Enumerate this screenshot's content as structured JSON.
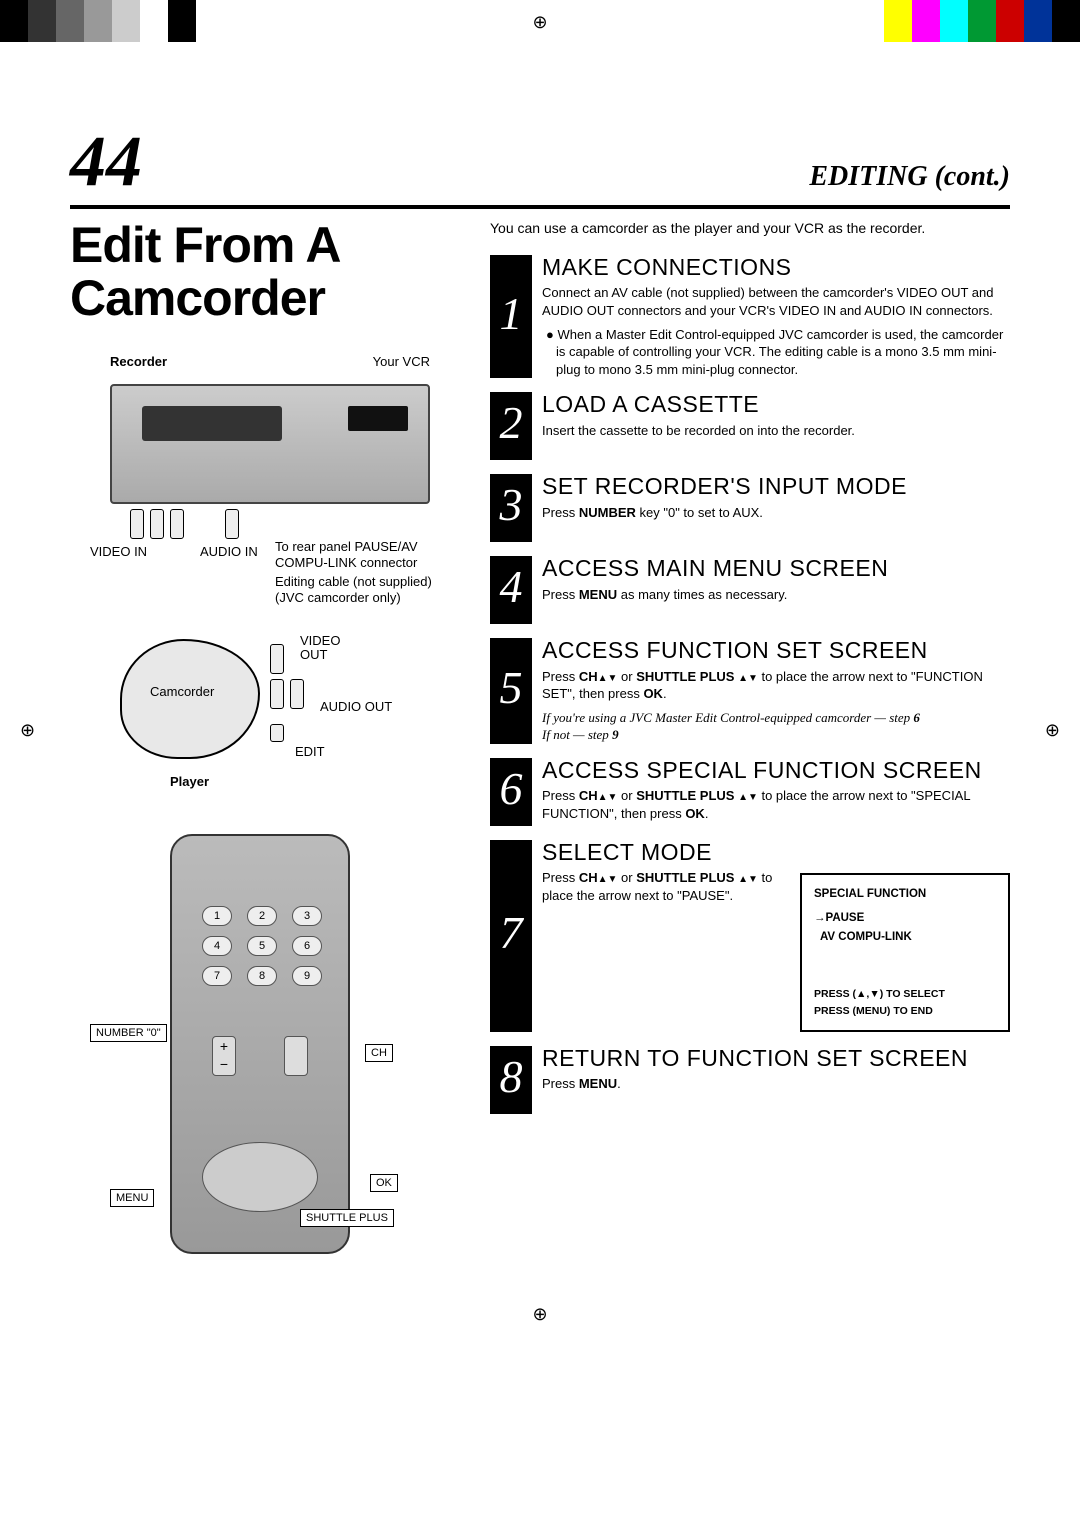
{
  "cropColors": {
    "leftBars": [
      "#000000",
      "#333333",
      "#666666",
      "#999999",
      "#cccccc",
      "#ffffff",
      "#000000"
    ],
    "rightBars": [
      "#ffff00",
      "#ff00ff",
      "#00ffff",
      "#009933",
      "#cc0000",
      "#003399",
      "#000000"
    ]
  },
  "header": {
    "pageNumber": "44",
    "sectionTitle": "EDITING (cont.)"
  },
  "mainTitle": "Edit From A Camcorder",
  "diagram": {
    "recorderLabel": "Recorder",
    "yourVcrLabel": "Your VCR",
    "videoInLabel": "VIDEO IN",
    "audioInLabel": "AUDIO IN",
    "rearPanelLabel": "To rear panel PAUSE/AV COMPU-LINK connector",
    "editingCableLabel": "Editing cable (not supplied) (JVC camcorder only)",
    "videoOutLabel": "VIDEO OUT",
    "camcorderLabel": "Camcorder",
    "audioOutLabel": "AUDIO OUT",
    "editLabel": "EDIT",
    "playerLabel": "Player",
    "numberZero": "NUMBER \"0\"",
    "chLabel": "CH",
    "menuLabel": "MENU",
    "okLabel": "OK",
    "shuttlePlusLabel": "SHUTTLE PLUS",
    "remoteNums": [
      "1",
      "2",
      "3",
      "4",
      "5",
      "6",
      "7",
      "8",
      "9"
    ]
  },
  "intro": "You can use a camcorder as the player and your VCR as the recorder.",
  "steps": [
    {
      "num": "1",
      "title": "MAKE CONNECTIONS",
      "body": "Connect an AV cable (not supplied) between the camcorder's VIDEO OUT and AUDIO OUT connectors and your VCR's VIDEO IN and AUDIO IN connectors.",
      "bullet": "When a Master Edit Control-equipped JVC camcorder is used, the camcorder is capable of controlling your VCR. The editing cable is a mono 3.5 mm mini-plug to mono 3.5 mm mini-plug connector."
    },
    {
      "num": "2",
      "title": "LOAD A CASSETTE",
      "body": "Insert the cassette to be recorded on into the recorder."
    },
    {
      "num": "3",
      "title": "SET RECORDER'S INPUT MODE",
      "bodyHtml": "Press <span class='b'>NUMBER</span> key \"0\" to set to AUX."
    },
    {
      "num": "4",
      "title": "ACCESS MAIN MENU SCREEN",
      "bodyHtml": "Press <span class='b'>MENU</span> as many times as necessary."
    },
    {
      "num": "5",
      "title": "ACCESS FUNCTION SET SCREEN",
      "bodyHtml": "Press <span class='b'>CH<span class='tri'>▲▼</span></span> or <span class='b'>SHUTTLE PLUS <span class='tri'>▲▼</span></span> to place the arrow next to \"FUNCTION SET\", then press <span class='b'>OK</span>.",
      "noteHtml": "If you're using a JVC Master Edit Control-equipped camcorder — step <b>6</b><br>If not — step <b>9</b>"
    },
    {
      "num": "6",
      "title": "ACCESS SPECIAL FUNCTION SCREEN",
      "bodyHtml": "Press <span class='b'>CH<span class='tri'>▲▼</span></span> or <span class='b'>SHUTTLE PLUS <span class='tri'>▲▼</span></span> to place the arrow next to \"SPECIAL FUNCTION\", then press <span class='b'>OK</span>."
    },
    {
      "num": "7",
      "title": "SELECT MODE",
      "bodyHtml": "Press <span class='b'>CH<span class='tri'>▲▼</span></span> or <span class='b'>SHUTTLE PLUS <span class='tri'>▲▼</span></span> to place the arrow next to \"PAUSE\".",
      "osd": {
        "title": "SPECIAL FUNCTION",
        "line1": "→PAUSE",
        "line2": "  AV COMPU-LINK",
        "foot1": "PRESS (▲,▼) TO SELECT",
        "foot2": "PRESS (MENU) TO END"
      }
    },
    {
      "num": "8",
      "title": "RETURN TO FUNCTION SET SCREEN",
      "bodyHtml": "Press <span class='b'>MENU</span>."
    }
  ]
}
